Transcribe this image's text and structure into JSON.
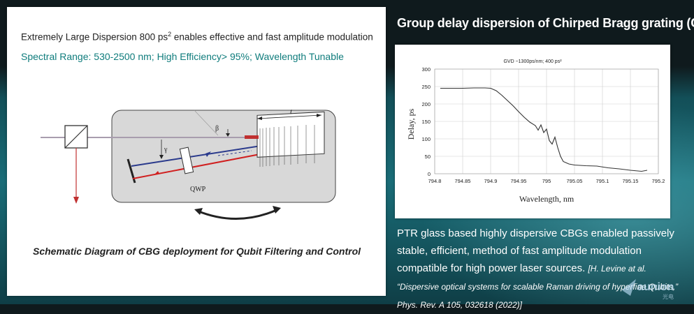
{
  "left_panel": {
    "title_main": "Extremely Large Dispersion 800 ps",
    "title_sup": "2",
    "title_rest": " enables effective and fast amplitude modulation",
    "subtitle": "Spectral Range: 530-2500 nm; High Efficiency> 95%; Wavelength Tunable",
    "schematic": {
      "label_qwp": "QWP",
      "label_beta": "β",
      "label_gamma": "γ",
      "label_t": "t"
    },
    "caption": "Schematic Diagram of CBG deployment for Qubit Filtering and Control"
  },
  "right_panel": {
    "title": "Group delay dispersion of Chirped Bragg grating (CBG)",
    "description": "PTR glass based highly dispersive CBGs enabled passively stable, efficient, method of fast amplitude modulation compatible for high power laser sources.",
    "citation": "[H. Levine at al. “Dispersive optical systems for scalable Raman driving of hyperfine Qubits,” Phys. Rev. A 105, 032618 (2022)]"
  },
  "watermark": {
    "text": "aunion",
    "subtext": "光电"
  },
  "chart_data": {
    "type": "line",
    "title": "GVD ~1300ps/nm; 400 ps²",
    "xlabel": "Wavelength, nm",
    "ylabel": "Delay, ps",
    "xlim": [
      794.8,
      795.2
    ],
    "ylim": [
      0,
      300
    ],
    "x_ticks": [
      "794.8",
      "794.85",
      "794.9",
      "794.95",
      "795",
      "795.05",
      "795.1",
      "795.15",
      "795.2"
    ],
    "y_ticks": [
      "0",
      "50",
      "100",
      "150",
      "200",
      "250",
      "300"
    ],
    "grid": true,
    "color": "#333333",
    "series": [
      {
        "x": [
          794.81,
          794.83,
          794.85,
          794.87,
          794.89,
          794.9,
          794.91,
          794.92,
          794.93,
          794.94,
          794.95,
          794.96,
          794.97,
          794.98,
          794.985,
          794.99,
          794.995,
          795.0,
          795.005,
          795.01,
          795.015,
          795.02,
          795.025,
          795.03,
          795.04,
          795.05,
          795.07,
          795.09,
          795.11,
          795.13,
          795.15,
          795.17,
          795.18
        ],
        "y": [
          245,
          245,
          245,
          246,
          246,
          245,
          238,
          225,
          210,
          195,
          178,
          162,
          148,
          138,
          125,
          140,
          118,
          128,
          95,
          85,
          105,
          75,
          50,
          35,
          28,
          25,
          23,
          22,
          17,
          14,
          10,
          7,
          10
        ]
      }
    ]
  }
}
